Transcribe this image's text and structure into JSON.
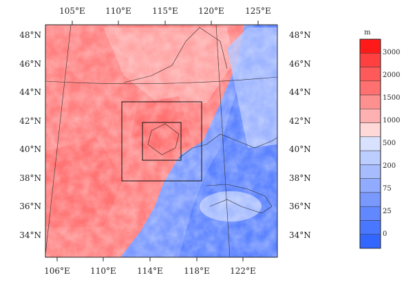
{
  "map": {
    "top_lon_labels": [
      "105°E",
      "110°E",
      "115°E",
      "120°E",
      "125°E"
    ],
    "bottom_lon_labels": [
      "106°E",
      "110°E",
      "114°E",
      "118°E",
      "122°E"
    ],
    "left_lat_labels": [
      "48°N",
      "46°N",
      "44°N",
      "42°N",
      "40°N",
      "38°N",
      "36°N",
      "34°N"
    ],
    "right_lat_labels": [
      "48°N",
      "46°N",
      "44°N",
      "42°N",
      "40°N",
      "38°N",
      "36°N",
      "34°N"
    ],
    "nested_domains": [
      "outer-domain-box",
      "inner-domain-box"
    ]
  },
  "colorbar": {
    "unit": "m",
    "labels": [
      "3000",
      "2000",
      "1500",
      "1000",
      "500",
      "200",
      "75",
      "25",
      "0"
    ],
    "colors": [
      "#ff1a1a",
      "#ff4040",
      "#ff5a5a",
      "#ff7070",
      "#ff9090",
      "#ffb0b0",
      "#ffd8d8",
      "#d8e2ff",
      "#bccdff",
      "#a6bcff",
      "#90abff",
      "#7a99ff",
      "#6288ff",
      "#4a77ff",
      "#3366ff"
    ]
  }
}
